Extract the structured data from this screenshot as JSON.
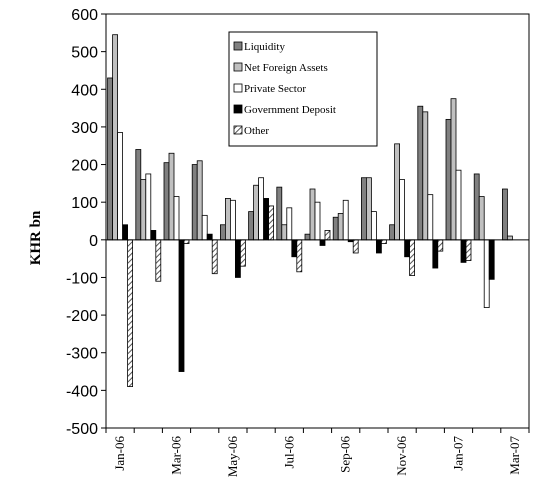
{
  "chart_data": {
    "type": "bar",
    "title": "",
    "xlabel": "",
    "ylabel": "KHR bn",
    "ylim": [
      -500,
      600
    ],
    "yticks": [
      600,
      500,
      400,
      300,
      200,
      100,
      0,
      -100,
      -200,
      -300,
      -400,
      -500
    ],
    "grid": false,
    "legend_position": "top-center",
    "categories": [
      "Jan-06",
      "Feb-06",
      "Mar-06",
      "Apr-06",
      "May-06",
      "Jun-06",
      "Jul-06",
      "Aug-06",
      "Sep-06",
      "Oct-06",
      "Nov-06",
      "Dec-06",
      "Jan-07",
      "Feb-07",
      "Mar-07"
    ],
    "x_tick_labels": [
      "Jan-06",
      "Mar-06",
      "May-06",
      "Jul-06",
      "Sep-06",
      "Nov-06",
      "Jan-07",
      "Mar-07"
    ],
    "series": [
      {
        "name": "Liquidity",
        "style": "grey",
        "values": [
          430,
          240,
          205,
          200,
          40,
          75,
          140,
          15,
          60,
          165,
          40,
          355,
          320,
          175,
          135
        ]
      },
      {
        "name": "Net Foreign Assets",
        "style": "lightgrey",
        "values": [
          545,
          160,
          230,
          210,
          110,
          145,
          40,
          135,
          70,
          165,
          255,
          340,
          375,
          115,
          10
        ]
      },
      {
        "name": "Private Sector",
        "style": "white",
        "values": [
          285,
          175,
          115,
          65,
          105,
          165,
          85,
          100,
          105,
          75,
          160,
          120,
          185,
          -180,
          null
        ]
      },
      {
        "name": "Government Deposit",
        "style": "black",
        "values": [
          40,
          25,
          -350,
          15,
          -100,
          110,
          -45,
          -15,
          -5,
          -35,
          -45,
          -75,
          -60,
          -105,
          null
        ]
      },
      {
        "name": "Other",
        "style": "hatch",
        "values": [
          -390,
          -110,
          -10,
          -90,
          -70,
          90,
          -85,
          25,
          -35,
          -10,
          -95,
          -30,
          -55,
          null,
          null
        ]
      }
    ]
  },
  "colors": {
    "liquidity": "#808080",
    "net_foreign_assets": "#c0c0c0",
    "private_sector": "#ffffff",
    "government_deposit": "#000000",
    "other_hatch": "#555555"
  }
}
